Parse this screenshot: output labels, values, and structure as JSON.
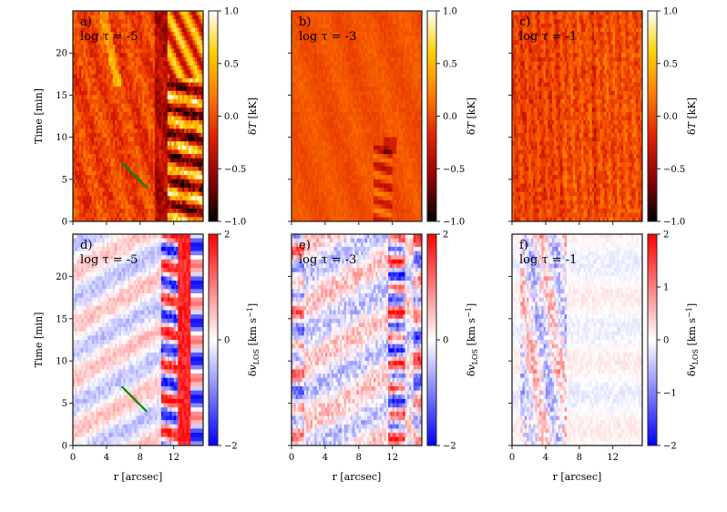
{
  "chart_data": {
    "type": "heatmap",
    "layout": "2 rows x 3 columns",
    "xlabel": "r [arcsec]",
    "ylabel": "Time [min]",
    "x_ticks": [
      0,
      4,
      8,
      12
    ],
    "y_ticks": [
      0,
      5,
      10,
      15,
      20
    ],
    "xlim": [
      0,
      15.5
    ],
    "ylim": [
      0,
      25
    ],
    "rows": [
      {
        "quantity": "temperature",
        "colorbar_label_html": "δ<tspan font-style=\"italic\">T</tspan> [kK]",
        "colorbar_ticks": [
          "1.0",
          "0.5",
          "0.0",
          "−0.5",
          "−1.0"
        ],
        "colorbar_range": [
          -1.0,
          1.0
        ],
        "colormap": "hot",
        "colormap_colors": [
          "#000000",
          "#8b0000",
          "#e02000",
          "#ff7a00",
          "#ffd000",
          "#ffffff"
        ]
      },
      {
        "quantity": "line-of-sight velocity",
        "colorbar_label_html": "δ<tspan font-style=\"italic\">v</tspan><tspan font-size=\"8\" dy=\"3\">LOS</tspan><tspan dy=\"-3\"> [km s</tspan><tspan font-size=\"8\" dy=\"-4\">−1</tspan><tspan dy=\"4\">]</tspan>",
        "colorbar_range": [
          -2,
          2
        ],
        "colormap": "bwr",
        "colormap_colors": [
          "#0000ff",
          "#ffffff",
          "#ff0000"
        ]
      }
    ],
    "velocity_colorbar_ticks": [
      [
        "2",
        "0",
        "−2"
      ],
      [
        "2",
        "0",
        "−2"
      ],
      [
        "2",
        "1",
        "0",
        "−1",
        "−2"
      ]
    ],
    "panels": [
      {
        "label": "a)",
        "tau": "log τ = -5"
      },
      {
        "label": "b)",
        "tau": "log τ = -3"
      },
      {
        "label": "c)",
        "tau": "log τ = -1"
      },
      {
        "label": "d)",
        "tau": "log τ = -5"
      },
      {
        "label": "e)",
        "tau": "log τ = -3"
      },
      {
        "label": "f)",
        "tau": "log τ = -1"
      }
    ],
    "annotation": {
      "type": "line",
      "color": "#008800",
      "panels": [
        "a)",
        "d)"
      ],
      "from": [
        5.8,
        7.0
      ],
      "to": [
        8.8,
        4.0
      ]
    }
  }
}
